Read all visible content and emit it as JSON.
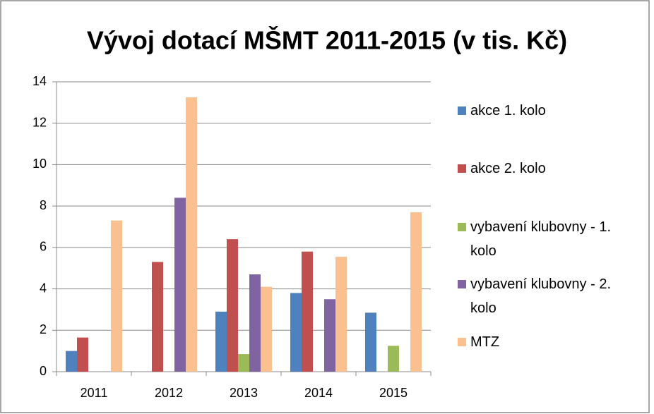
{
  "chart_data": {
    "type": "bar",
    "title": "Vývoj dotací MŠMT 2011-2015 (v tis. Kč)",
    "categories": [
      "2011",
      "2012",
      "2013",
      "2014",
      "2015"
    ],
    "series": [
      {
        "name": "akce 1. kolo",
        "color": "#4f81bd",
        "values": [
          1.0,
          0,
          2.9,
          3.8,
          2.85
        ]
      },
      {
        "name": "akce 2. kolo",
        "color": "#c0504d",
        "values": [
          1.65,
          5.3,
          6.4,
          5.8,
          0
        ]
      },
      {
        "name": "vybavení klubovny - 1. kolo",
        "color": "#9bbb59",
        "values": [
          0,
          0,
          0.85,
          0,
          1.25
        ]
      },
      {
        "name": "vybavení klubovny - 2. kolo",
        "color": "#8064a2",
        "values": [
          0,
          8.4,
          4.7,
          3.5,
          0
        ]
      },
      {
        "name": "MTZ",
        "color": "#fac090",
        "values": [
          7.3,
          13.25,
          4.1,
          5.55,
          7.7
        ]
      }
    ],
    "ylim": [
      0,
      14
    ],
    "yticks": [
      0,
      2,
      4,
      6,
      8,
      10,
      12,
      14
    ],
    "grid": true,
    "legend": "right"
  }
}
